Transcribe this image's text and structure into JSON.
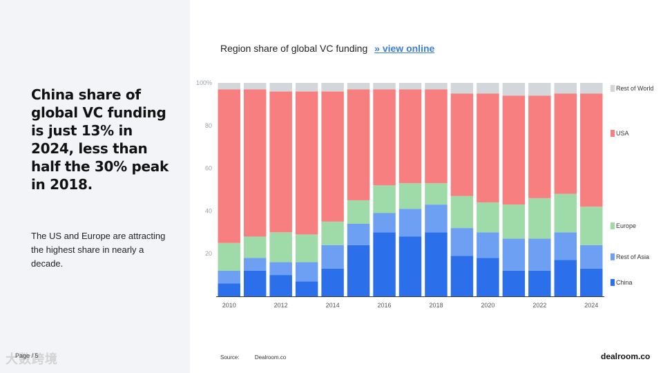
{
  "slide": {
    "headline": "China share of global VC funding is just 13% in 2024, less than half the 30% peak in 2018.",
    "subtext": "The US and Europe are attracting the highest share in nearly a decade.",
    "page_label": "Page / 5",
    "watermark": "大数跨境",
    "source_label": "Source:",
    "source_value": "Dealroom.co",
    "brand": "dealroom.co"
  },
  "chart_title": {
    "text": "Region share of global VC funding",
    "link": "» view online"
  },
  "chart_data": {
    "type": "bar",
    "stacked": true,
    "title": "Region share of global VC funding",
    "xlabel": "",
    "ylabel": "",
    "ylim": [
      0,
      100
    ],
    "yticks": [
      20,
      40,
      60,
      80
    ],
    "yticks_top_label": "100%",
    "xtick_labels": [
      "2010",
      "2012",
      "2014",
      "2016",
      "2018",
      "2020",
      "2022",
      "2024"
    ],
    "categories": [
      "2010",
      "2011",
      "2012",
      "2013",
      "2014",
      "2015",
      "2016",
      "2017",
      "2018",
      "2019",
      "2020",
      "2021",
      "2022",
      "2023",
      "2024"
    ],
    "legend_position": "right",
    "series": [
      {
        "name": "China",
        "color": "#2c6fea",
        "values": [
          6,
          12,
          10,
          7,
          13,
          24,
          30,
          28,
          30,
          19,
          18,
          12,
          12,
          17,
          13
        ]
      },
      {
        "name": "Rest of Asia",
        "color": "#6d9ff2",
        "values": [
          6,
          6,
          6,
          9,
          11,
          10,
          9,
          13,
          13,
          13,
          12,
          15,
          15,
          13,
          11
        ]
      },
      {
        "name": "Europe",
        "color": "#9edba9",
        "values": [
          13,
          10,
          14,
          13,
          11,
          11,
          13,
          12,
          10,
          15,
          14,
          16,
          19,
          18,
          18
        ]
      },
      {
        "name": "USA",
        "color": "#f87f7f",
        "values": [
          72,
          69,
          66,
          67,
          61,
          52,
          45,
          44,
          44,
          48,
          51,
          51,
          48,
          47,
          53
        ]
      },
      {
        "name": "Rest of World",
        "color": "#d3d6da",
        "values": [
          3,
          3,
          4,
          4,
          4,
          3,
          3,
          3,
          3,
          5,
          5,
          6,
          6,
          5,
          5
        ]
      }
    ]
  }
}
